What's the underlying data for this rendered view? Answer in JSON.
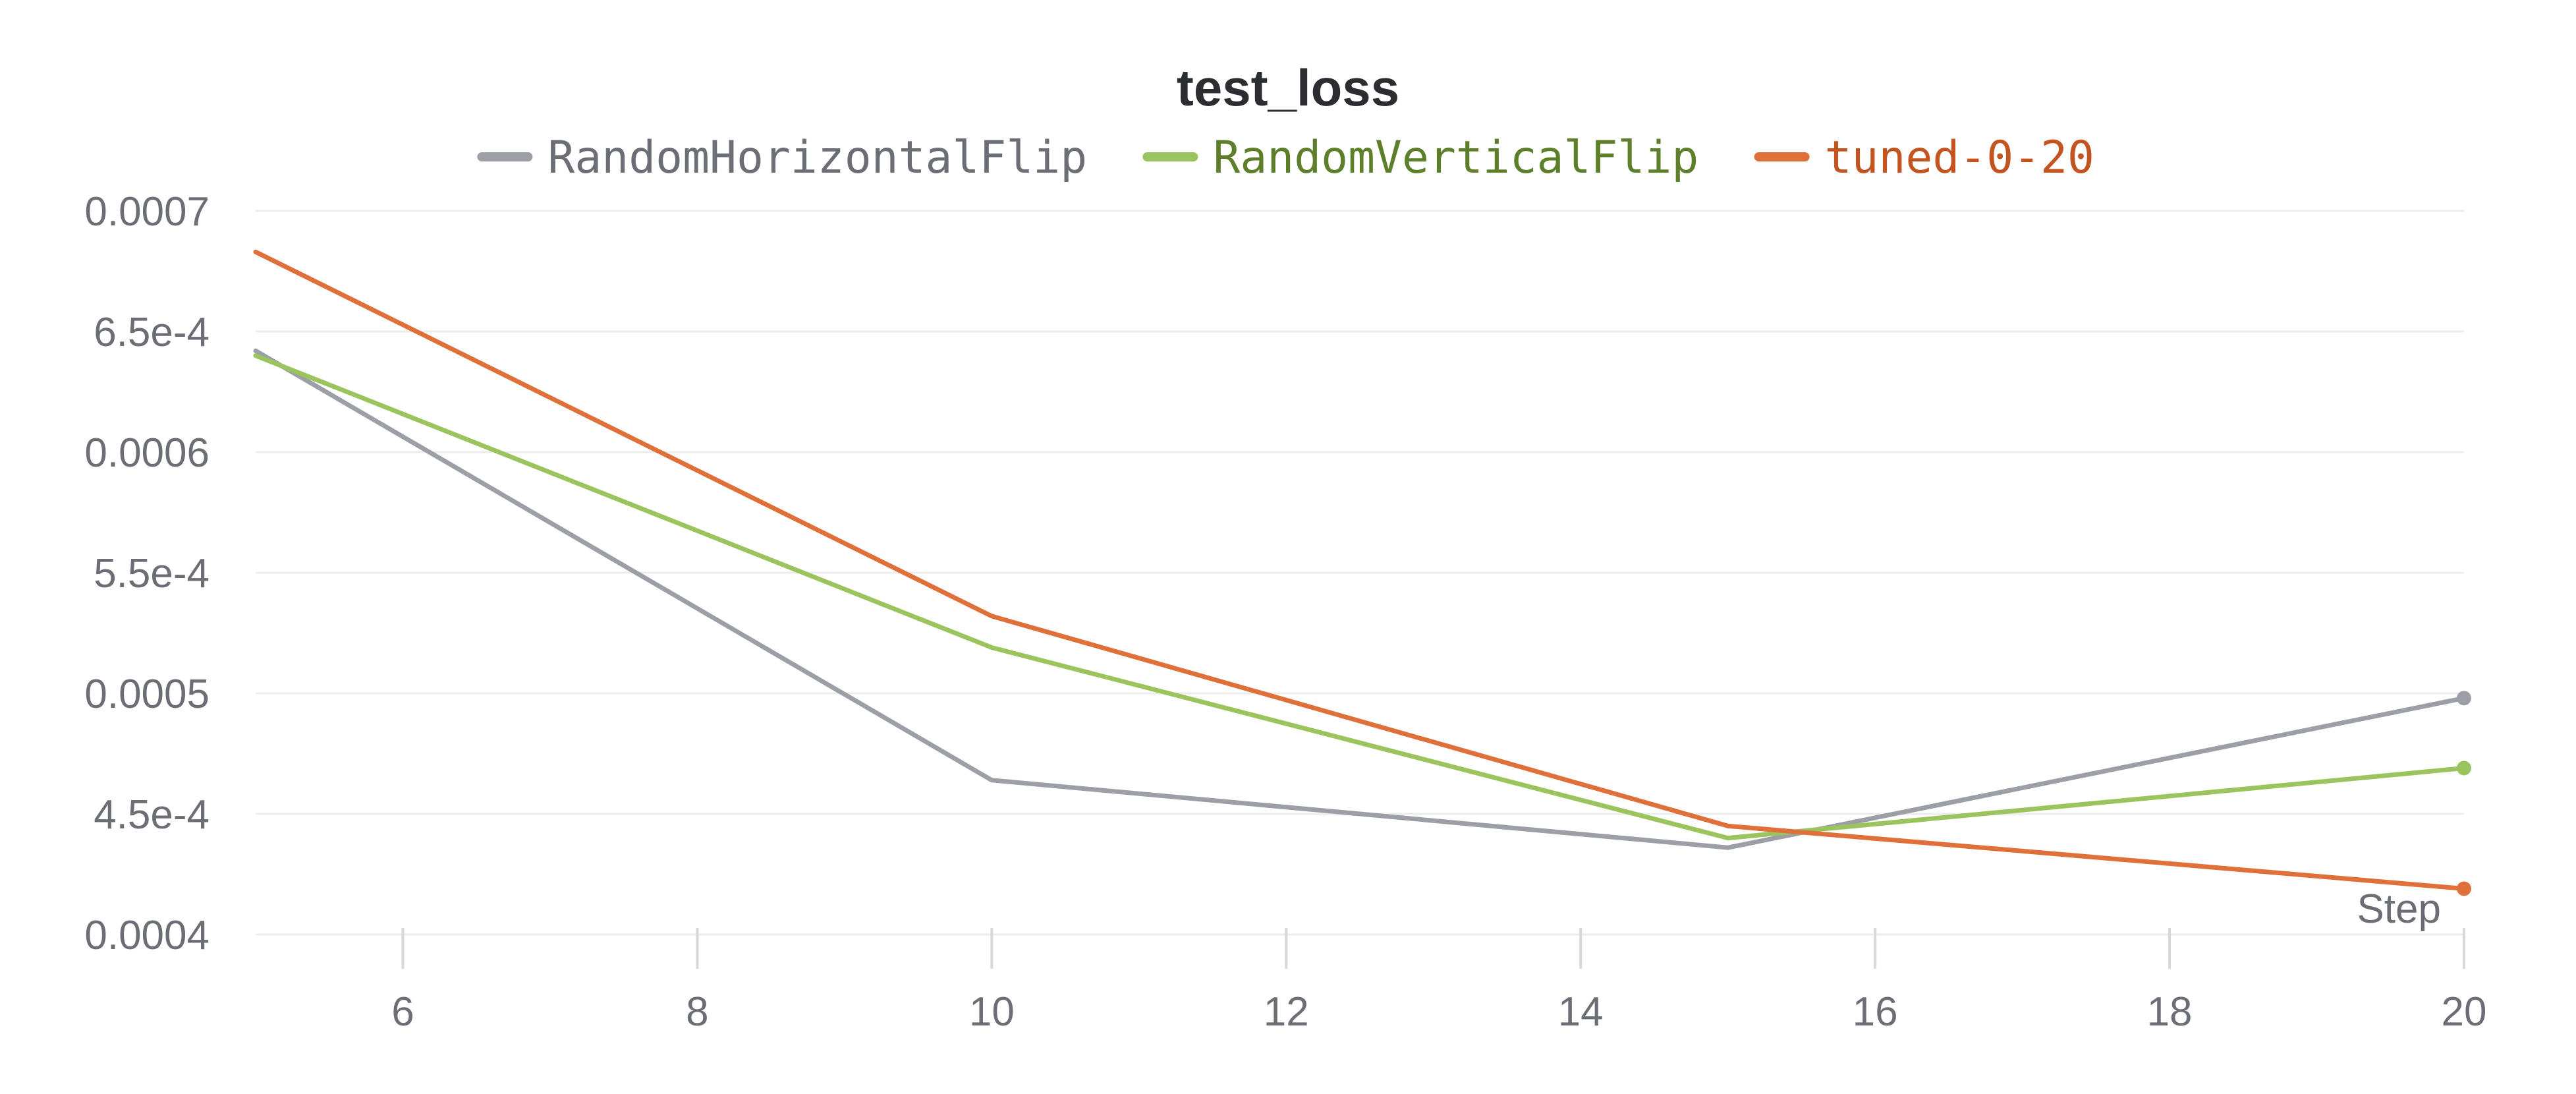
{
  "chart_data": {
    "type": "line",
    "title": "test_loss",
    "xlabel": "Step",
    "ylabel": "",
    "xlim": [
      5,
      20
    ],
    "ylim": [
      0.0004,
      0.0007
    ],
    "x_ticks": [
      6,
      8,
      10,
      12,
      14,
      16,
      18,
      20
    ],
    "x_tick_labels": [
      "6",
      "8",
      "10",
      "12",
      "14",
      "16",
      "18",
      "20"
    ],
    "y_ticks": [
      0.0004,
      0.00045,
      0.0005,
      0.00055,
      0.0006,
      0.00065,
      0.0007
    ],
    "y_tick_labels": [
      "0.0004",
      "4.5e-4",
      "0.0005",
      "5.5e-4",
      "0.0006",
      "6.5e-4",
      "0.0007"
    ],
    "grid": true,
    "legend_position": "top",
    "series": [
      {
        "name": "RandomHorizontalFlip",
        "color": "#9ca0a6",
        "label_color": "#6b6e75",
        "x": [
          5,
          10,
          15,
          20
        ],
        "y": [
          0.000642,
          0.000464,
          0.000436,
          0.000498
        ]
      },
      {
        "name": "RandomVerticalFlip",
        "color": "#9cc45e",
        "label_color": "#5e7f29",
        "x": [
          5,
          10,
          15,
          20
        ],
        "y": [
          0.00064,
          0.000519,
          0.00044,
          0.000469
        ]
      },
      {
        "name": "tuned-0-20",
        "color": "#e0703a",
        "label_color": "#c4541f",
        "x": [
          5,
          10,
          15,
          20
        ],
        "y": [
          0.000683,
          0.000532,
          0.000445,
          0.000419
        ]
      }
    ]
  }
}
